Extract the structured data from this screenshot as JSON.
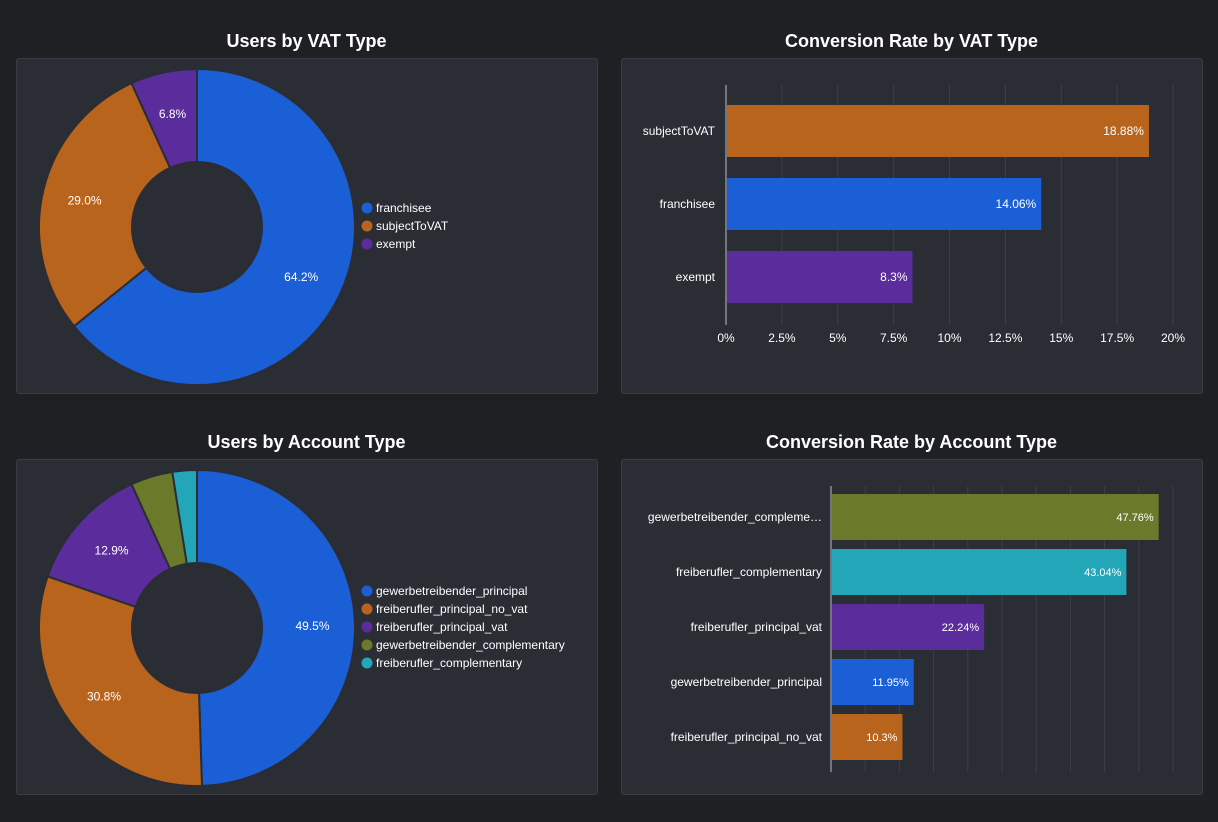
{
  "chart_data": [
    {
      "type": "pie",
      "title": "Users by VAT Type",
      "labels": [
        "franchisee",
        "subjectToVAT",
        "exempt"
      ],
      "values": [
        64.2,
        29.0,
        6.8
      ],
      "value_labels": [
        "64.2%",
        "29.0%",
        "6.8%"
      ],
      "colors": [
        "#1a5fd6",
        "#b8641c",
        "#5b2d9c"
      ],
      "legend": "right",
      "donut": true
    },
    {
      "type": "bar",
      "orientation": "horizontal",
      "title": "Conversion Rate by VAT Type",
      "categories": [
        "subjectToVAT",
        "franchisee",
        "exempt"
      ],
      "values": [
        18.88,
        14.06,
        8.3
      ],
      "value_labels": [
        "18.88%",
        "14.06%",
        "8.3%"
      ],
      "colors": [
        "#b8641c",
        "#1a5fd6",
        "#5b2d9c"
      ],
      "xlim": [
        0,
        20
      ],
      "xticks": [
        "0%",
        "2.5%",
        "5%",
        "7.5%",
        "10%",
        "12.5%",
        "15%",
        "17.5%",
        "20%"
      ],
      "grid": true
    },
    {
      "type": "pie",
      "title": "Users by Account Type",
      "labels": [
        "gewerbetreibender_principal",
        "freiberufler_principal_no_vat",
        "freiberufler_principal_vat",
        "gewerbetreibender_complementary",
        "freiberufler_complementary"
      ],
      "values": [
        49.5,
        30.8,
        12.9,
        4.3,
        2.5
      ],
      "value_labels": [
        "49.5%",
        "30.8%",
        "12.9%",
        "",
        ""
      ],
      "colors": [
        "#1a5fd6",
        "#b8641c",
        "#5b2d9c",
        "#6b7a2a",
        "#23a6b8"
      ],
      "legend": "right",
      "donut": true
    },
    {
      "type": "bar",
      "orientation": "horizontal",
      "title": "Conversion Rate by Account Type",
      "categories": [
        "gewerbetreibender_compleme…",
        "freiberufler_complementary",
        "freiberufler_principal_vat",
        "gewerbetreibender_principal",
        "freiberufler_principal_no_vat"
      ],
      "values": [
        47.76,
        43.04,
        22.24,
        11.95,
        10.3
      ],
      "value_labels": [
        "47.76%",
        "43.04%",
        "22.24%",
        "11.95%",
        "10.3%"
      ],
      "colors": [
        "#6b7a2a",
        "#23a6b8",
        "#5b2d9c",
        "#1a5fd6",
        "#b8641c"
      ],
      "xlim": [
        0,
        50
      ],
      "xticks": [],
      "grid": true
    }
  ]
}
